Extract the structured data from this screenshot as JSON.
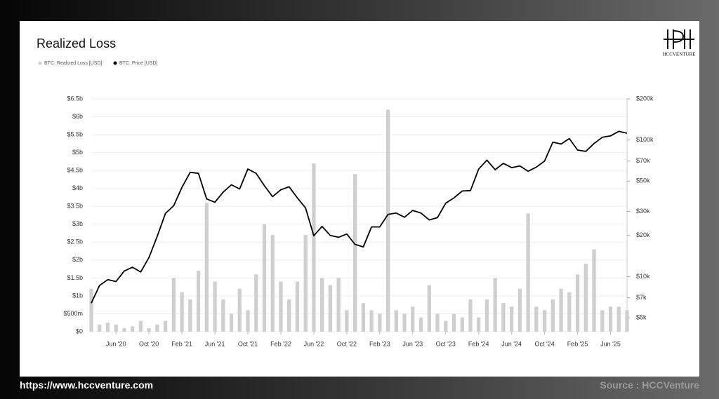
{
  "chart_data": {
    "type": "combo",
    "title": "Realized Loss",
    "x": [
      "2020-03",
      "2020-04",
      "2020-05",
      "2020-06",
      "2020-07",
      "2020-08",
      "2020-09",
      "2020-10",
      "2020-11",
      "2020-12",
      "2021-01",
      "2021-02",
      "2021-03",
      "2021-04",
      "2021-05",
      "2021-06",
      "2021-07",
      "2021-08",
      "2021-09",
      "2021-10",
      "2021-11",
      "2021-12",
      "2022-01",
      "2022-02",
      "2022-03",
      "2022-04",
      "2022-05",
      "2022-06",
      "2022-07",
      "2022-08",
      "2022-09",
      "2022-10",
      "2022-11",
      "2022-12",
      "2023-01",
      "2023-02",
      "2023-03",
      "2023-04",
      "2023-05",
      "2023-06",
      "2023-07",
      "2023-08",
      "2023-09",
      "2023-10",
      "2023-11",
      "2023-12",
      "2024-01",
      "2024-02",
      "2024-03",
      "2024-04",
      "2024-05",
      "2024-06",
      "2024-07",
      "2024-08",
      "2024-09",
      "2024-10",
      "2024-11",
      "2024-12",
      "2025-01",
      "2025-02",
      "2025-03",
      "2025-04",
      "2025-05",
      "2025-06",
      "2025-07",
      "2025-08"
    ],
    "xlim": [
      "2020-03",
      "2025-08"
    ],
    "xticks": [
      {
        "value": "2020-06",
        "label": "Jun '20"
      },
      {
        "value": "2020-10",
        "label": "Oct '20"
      },
      {
        "value": "2021-02",
        "label": "Feb '21"
      },
      {
        "value": "2021-06",
        "label": "Jun '21"
      },
      {
        "value": "2021-10",
        "label": "Oct '21"
      },
      {
        "value": "2022-02",
        "label": "Feb '22"
      },
      {
        "value": "2022-06",
        "label": "Jun '22"
      },
      {
        "value": "2022-10",
        "label": "Oct '22"
      },
      {
        "value": "2023-02",
        "label": "Feb '23"
      },
      {
        "value": "2023-06",
        "label": "Jun '23"
      },
      {
        "value": "2023-10",
        "label": "Oct '23"
      },
      {
        "value": "2024-02",
        "label": "Feb '24"
      },
      {
        "value": "2024-06",
        "label": "Jun '24"
      },
      {
        "value": "2024-10",
        "label": "Oct '24"
      },
      {
        "value": "2025-02",
        "label": "Feb '25"
      },
      {
        "value": "2025-06",
        "label": "Jun '25"
      }
    ],
    "ylim": [
      0,
      6.5
    ],
    "yticks": [
      {
        "value": 0,
        "label": "$0"
      },
      {
        "value": 0.5,
        "label": "$500m"
      },
      {
        "value": 1,
        "label": "$1b"
      },
      {
        "value": 1.5,
        "label": "$1.5b"
      },
      {
        "value": 2,
        "label": "$2b"
      },
      {
        "value": 2.5,
        "label": "$2.5b"
      },
      {
        "value": 3,
        "label": "$3b"
      },
      {
        "value": 3.5,
        "label": "$3.5b"
      },
      {
        "value": 4,
        "label": "$4b"
      },
      {
        "value": 4.5,
        "label": "$4.5b"
      },
      {
        "value": 5,
        "label": "$5b"
      },
      {
        "value": 5.5,
        "label": "$5.5b"
      },
      {
        "value": 6,
        "label": "$6b"
      },
      {
        "value": 6.5,
        "label": "$6.5b"
      }
    ],
    "y2lim": [
      3950,
      200000
    ],
    "y2scale": "log",
    "y2ticks": [
      {
        "value": 5000,
        "label": "$5k"
      },
      {
        "value": 7000,
        "label": "$7k"
      },
      {
        "value": 10000,
        "label": "$10k"
      },
      {
        "value": 20000,
        "label": "$20k"
      },
      {
        "value": 30000,
        "label": "$30k"
      },
      {
        "value": 50000,
        "label": "$50k"
      },
      {
        "value": 70000,
        "label": "$70k"
      },
      {
        "value": 100000,
        "label": "$100k"
      },
      {
        "value": 200000,
        "label": "$200k"
      }
    ],
    "grid": true,
    "series": [
      {
        "name": "BTC: Realized Loss [USD]",
        "type": "bar",
        "color": "#cfcfcf",
        "values": [
          1.2,
          0.2,
          0.25,
          0.2,
          0.1,
          0.15,
          0.3,
          0.1,
          0.2,
          0.3,
          1.5,
          1.1,
          0.9,
          1.7,
          3.6,
          1.4,
          0.9,
          0.5,
          1.2,
          0.6,
          1.6,
          3.0,
          2.7,
          1.4,
          0.9,
          1.4,
          2.7,
          4.7,
          1.5,
          1.3,
          1.5,
          0.6,
          4.4,
          0.8,
          0.6,
          0.5,
          6.2,
          0.6,
          0.5,
          0.7,
          0.4,
          1.3,
          0.5,
          0.3,
          0.5,
          0.4,
          0.9,
          0.4,
          0.9,
          1.5,
          0.8,
          0.7,
          1.2,
          3.3,
          0.7,
          0.6,
          0.9,
          1.2,
          1.1,
          1.6,
          1.9,
          2.3,
          0.6,
          0.7,
          0.7,
          0.6
        ]
      },
      {
        "name": "BTC: Price [USD]",
        "type": "line",
        "axis": "y2",
        "color": "#000000",
        "values": [
          6400,
          8600,
          9500,
          9200,
          11000,
          11700,
          10800,
          13800,
          19700,
          29000,
          33000,
          45000,
          58000,
          57000,
          37000,
          35000,
          41500,
          47000,
          43800,
          61300,
          57000,
          46300,
          38500,
          43200,
          45500,
          37700,
          31800,
          19900,
          23300,
          20000,
          19400,
          20500,
          17200,
          16500,
          23100,
          23100,
          28500,
          29200,
          27200,
          30500,
          29200,
          26000,
          27000,
          34500,
          37700,
          42300,
          42600,
          61200,
          71300,
          60600,
          67500,
          62700,
          64600,
          59000,
          63300,
          70200,
          96400,
          93400,
          102400,
          84400,
          82500,
          94200,
          104600,
          107100,
          115700,
          112000
        ]
      }
    ]
  },
  "logo": "HCCVENTURE",
  "footer": {
    "url": "https://www.hccventure.com",
    "source": "Source : HCCVenture"
  }
}
